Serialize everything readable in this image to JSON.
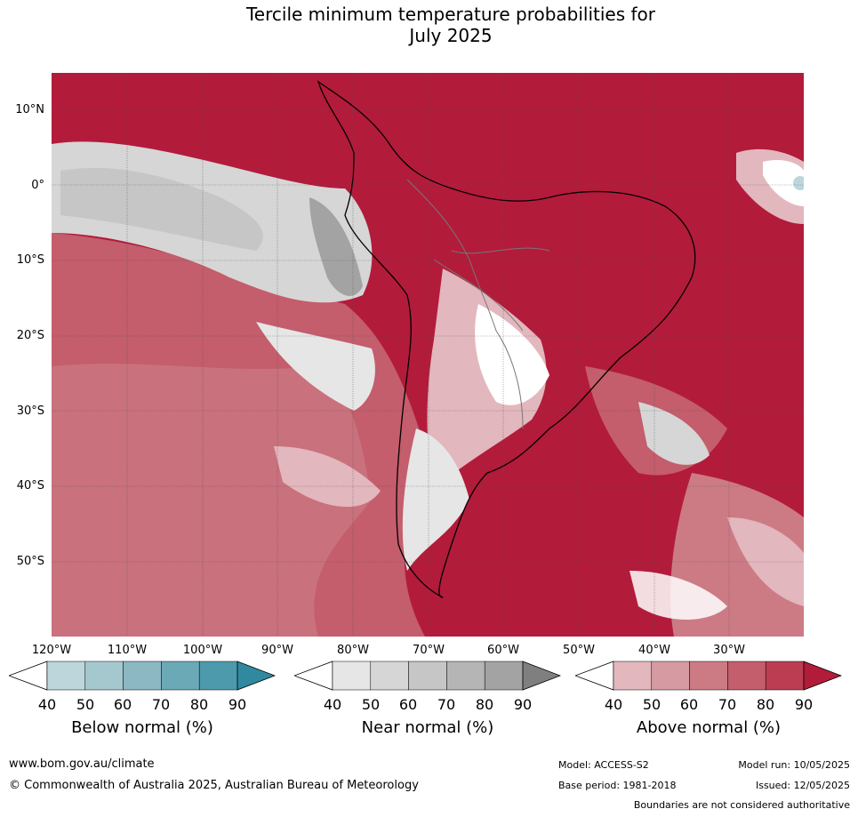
{
  "title": {
    "line1": "Tercile minimum temperature probabilities for",
    "line2": "July 2025"
  },
  "latitude_labels": [
    "10°N",
    "0°",
    "10°S",
    "20°S",
    "30°S",
    "40°S",
    "50°S"
  ],
  "longitude_labels": [
    "120°W",
    "110°W",
    "100°W",
    "90°W",
    "80°W",
    "70°W",
    "60°W",
    "50°W",
    "40°W",
    "30°W"
  ],
  "colorbars": [
    {
      "label": "Below normal (%)",
      "ticks": [
        "40",
        "50",
        "60",
        "70",
        "80",
        "90"
      ],
      "colors": [
        "#ffffff",
        "#bcd6dc",
        "#a5c8cf",
        "#8bb8c3",
        "#6ba9b7",
        "#4c9aac",
        "#2f8aa0"
      ]
    },
    {
      "label": "Near normal (%)",
      "ticks": [
        "40",
        "50",
        "60",
        "70",
        "80",
        "90"
      ],
      "colors": [
        "#ffffff",
        "#e6e6e6",
        "#d6d6d6",
        "#c6c6c6",
        "#b5b5b5",
        "#a3a3a3",
        "#7f7f7f"
      ]
    },
    {
      "label": "Above normal (%)",
      "ticks": [
        "40",
        "50",
        "60",
        "70",
        "80",
        "90"
      ],
      "colors": [
        "#ffffff",
        "#e2b7bd",
        "#d69ba2",
        "#cc7b85",
        "#c45d6c",
        "#bc3d52",
        "#b31b3b"
      ]
    }
  ],
  "footer": {
    "website": "www.bom.gov.au/climate",
    "copyright": "© Commonwealth of Australia 2025, Australian Bureau of Meteorology",
    "model": "Model: ACCESS-S2",
    "base_period": "Base period: 1981-2018",
    "model_run": "Model run: 10/05/2025",
    "issued": "Issued: 12/05/2025",
    "disclaimer": "Boundaries are not considered authoritative"
  }
}
